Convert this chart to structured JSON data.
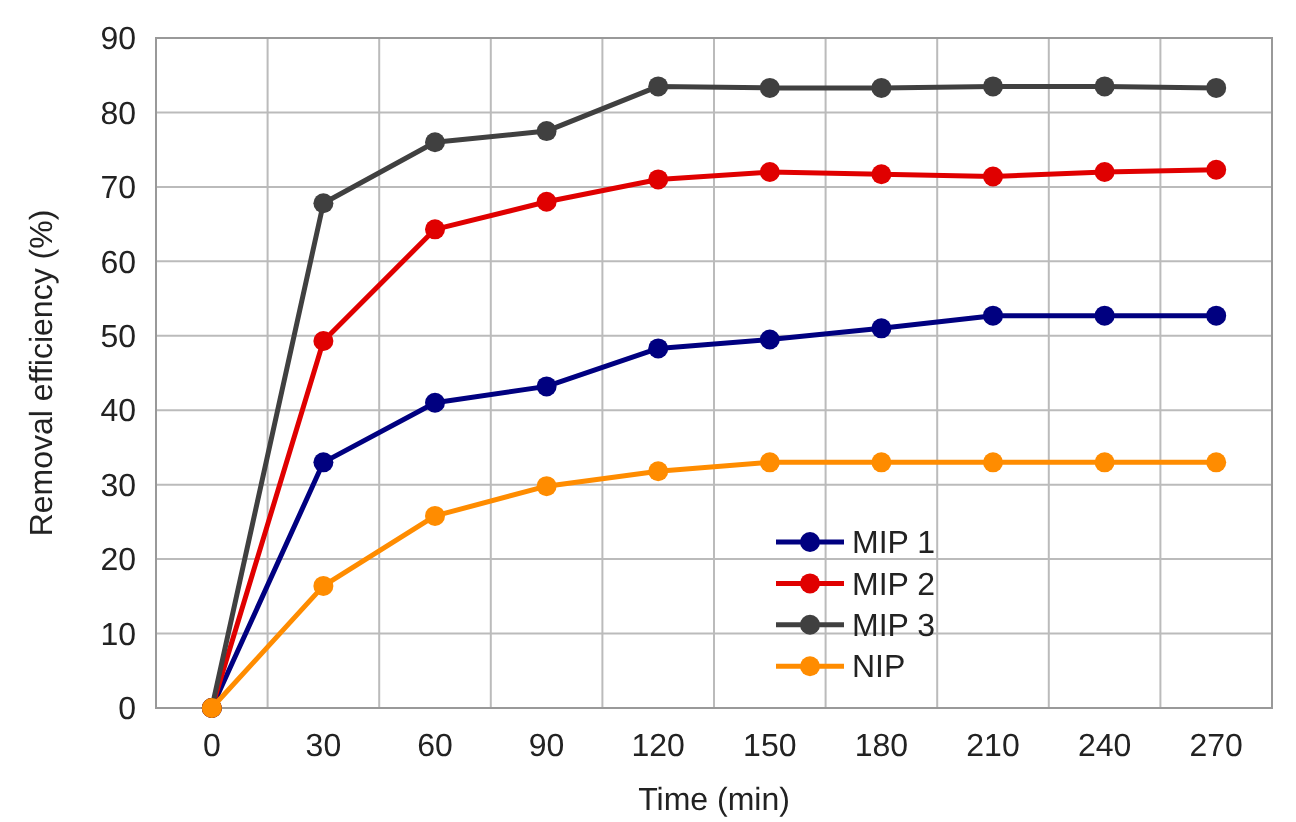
{
  "chart_data": {
    "type": "line",
    "xlabel": "Time (min)",
    "ylabel": "Removal efficiency (%)",
    "categories": [
      "0",
      "30",
      "60",
      "90",
      "120",
      "150",
      "180",
      "210",
      "240",
      "270"
    ],
    "series": [
      {
        "name": "MIP 1",
        "color": "#000080",
        "values": [
          0,
          33,
          41,
          43.2,
          48.3,
          49.5,
          51,
          52.7,
          52.7,
          52.7
        ]
      },
      {
        "name": "MIP 2",
        "color": "#e00000",
        "values": [
          0,
          49.3,
          64.3,
          68,
          71,
          72,
          71.7,
          71.4,
          72,
          72.3
        ]
      },
      {
        "name": "MIP 3",
        "color": "#404040",
        "values": [
          0,
          67.8,
          76,
          77.5,
          83.5,
          83.3,
          83.3,
          83.5,
          83.5,
          83.3
        ]
      },
      {
        "name": "NIP",
        "color": "#ff8c00",
        "values": [
          0,
          16.4,
          25.8,
          29.8,
          31.8,
          33,
          33,
          33,
          33,
          33
        ]
      }
    ],
    "ylim": [
      0,
      90
    ],
    "yticks": [
      0,
      10,
      20,
      30,
      40,
      50,
      60,
      70,
      80,
      90
    ],
    "grid": true,
    "legend": "bottom right",
    "marker": "circle",
    "line_style": "solid"
  }
}
